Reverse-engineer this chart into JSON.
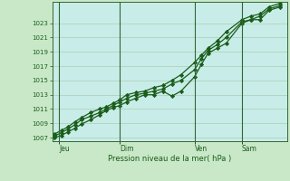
{
  "bg_color": "#c8e8c8",
  "plot_bg_color": "#c8ede8",
  "grid_color": "#99bb99",
  "line_color": "#1a5c1a",
  "marker_color": "#1a5c1a",
  "xlabel": "Pression niveau de la mer( hPa )",
  "xlabel_color": "#1a5c1a",
  "tick_color": "#1a5c1a",
  "ylim": [
    1006.5,
    1026.0
  ],
  "yticks": [
    1007,
    1009,
    1011,
    1013,
    1015,
    1017,
    1019,
    1021,
    1023
  ],
  "day_labels": [
    "Jeu",
    "Dim",
    "Ven",
    "Sam"
  ],
  "day_positions": [
    0.02,
    0.29,
    0.62,
    0.83
  ],
  "series1_x": [
    0.0,
    0.03,
    0.06,
    0.09,
    0.12,
    0.16,
    0.2,
    0.23,
    0.26,
    0.29,
    0.32,
    0.36,
    0.4,
    0.44,
    0.48,
    0.52,
    0.56,
    0.62,
    0.65,
    0.68,
    0.72,
    0.76,
    0.83,
    0.87,
    0.91,
    0.95,
    1.0
  ],
  "series1_y": [
    1007.0,
    1007.3,
    1007.8,
    1008.3,
    1008.9,
    1009.5,
    1010.2,
    1010.8,
    1011.2,
    1011.5,
    1012.0,
    1012.5,
    1013.0,
    1013.0,
    1013.5,
    1012.8,
    1013.5,
    1015.5,
    1017.2,
    1018.8,
    1019.5,
    1020.2,
    1023.0,
    1023.5,
    1023.5,
    1024.8,
    1025.3
  ],
  "series2_x": [
    0.0,
    0.03,
    0.06,
    0.09,
    0.12,
    0.16,
    0.2,
    0.23,
    0.26,
    0.29,
    0.32,
    0.36,
    0.4,
    0.44,
    0.48,
    0.52,
    0.56,
    0.62,
    0.65,
    0.68,
    0.72,
    0.76,
    0.83,
    0.87,
    0.91,
    0.95,
    1.0
  ],
  "series2_y": [
    1007.2,
    1007.7,
    1008.2,
    1008.8,
    1009.5,
    1010.0,
    1010.5,
    1011.0,
    1011.5,
    1012.0,
    1012.5,
    1013.0,
    1013.2,
    1013.5,
    1013.8,
    1014.5,
    1015.0,
    1016.5,
    1018.0,
    1019.2,
    1020.0,
    1021.0,
    1023.2,
    1023.5,
    1024.0,
    1025.0,
    1025.5
  ],
  "series3_x": [
    0.0,
    0.03,
    0.06,
    0.09,
    0.12,
    0.16,
    0.2,
    0.23,
    0.26,
    0.29,
    0.32,
    0.36,
    0.4,
    0.44,
    0.48,
    0.52,
    0.56,
    0.62,
    0.65,
    0.68,
    0.72,
    0.76,
    0.83,
    0.87,
    0.91,
    0.95,
    1.0
  ],
  "series3_y": [
    1007.5,
    1008.0,
    1008.5,
    1009.2,
    1009.8,
    1010.5,
    1011.0,
    1011.3,
    1011.8,
    1012.3,
    1013.0,
    1013.3,
    1013.5,
    1014.0,
    1014.3,
    1015.0,
    1015.8,
    1017.5,
    1018.5,
    1019.5,
    1020.5,
    1021.8,
    1023.5,
    1024.0,
    1024.3,
    1025.3,
    1025.8
  ]
}
